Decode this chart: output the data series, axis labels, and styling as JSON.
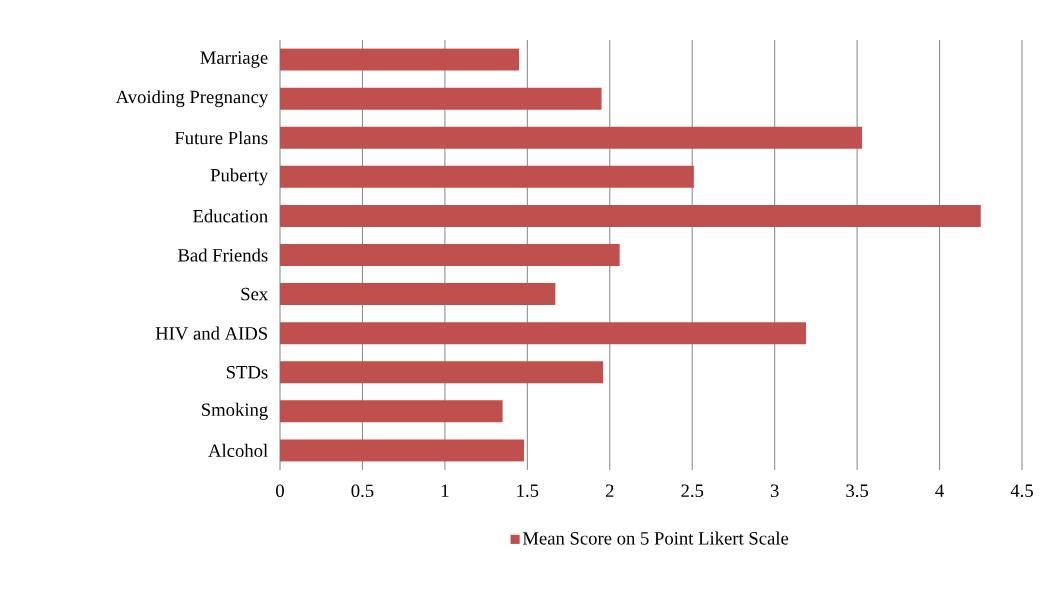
{
  "chart_data": {
    "type": "bar",
    "orientation": "horizontal",
    "categories": [
      "Marriage",
      "Avoiding Pregnancy",
      "Future Plans",
      "Puberty",
      "Education",
      "Bad Friends",
      "Sex",
      "HIV and AIDS",
      "STDs",
      "Smoking",
      "Alcohol"
    ],
    "series": [
      {
        "name": "Mean Score on 5 Point Likert Scale",
        "color": "#c0504d",
        "values": [
          1.45,
          1.95,
          3.53,
          2.51,
          4.25,
          2.06,
          1.67,
          3.19,
          1.96,
          1.35,
          1.48
        ]
      }
    ],
    "xlim": [
      0,
      4.5
    ],
    "xticks": [
      0,
      0.5,
      1,
      1.5,
      2,
      2.5,
      3,
      3.5,
      4,
      4.5
    ],
    "grid": "x",
    "legend": "bottom"
  }
}
